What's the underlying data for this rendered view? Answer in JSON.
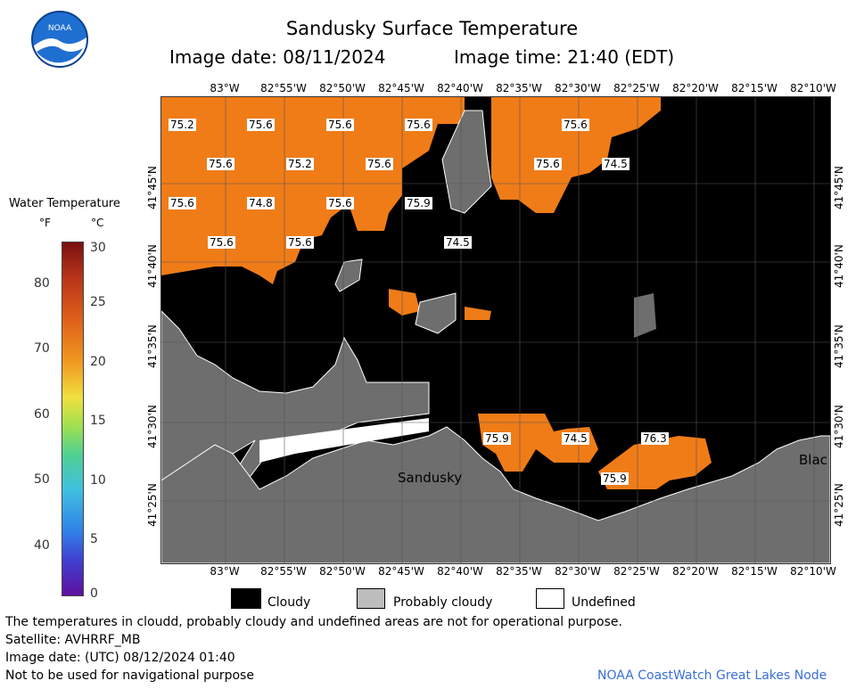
{
  "header": {
    "title": "Sandusky Surface Temperature",
    "image_date": "Image date: 08/11/2024",
    "image_time": "Image time: 21:40 (EDT)"
  },
  "colorbar": {
    "title": "Water Temperature",
    "unit_f": "°F",
    "unit_c": "°C",
    "f_ticks": [
      "80",
      "70",
      "60",
      "50",
      "40"
    ],
    "c_ticks": [
      "30",
      "25",
      "20",
      "15",
      "10",
      "5",
      "0"
    ]
  },
  "map": {
    "lon_labels": [
      "83°W",
      "82°55'W",
      "82°50'W",
      "82°45'W",
      "82°40'W",
      "82°35'W",
      "82°30'W",
      "82°25'W",
      "82°20'W",
      "82°15'W",
      "82°10'W"
    ],
    "lat_labels": [
      "41°45'N",
      "41°40'N",
      "41°35'N",
      "41°30'N",
      "41°25'N"
    ],
    "place_labels": {
      "sandusky": "Sandusky",
      "black": "Blac"
    },
    "temperature_labels": [
      "75.2",
      "75.6",
      "75.6",
      "75.6",
      "75.6",
      "75.2",
      "75.6",
      "75.6",
      "75.6",
      "74.5",
      "75.6",
      "74.8",
      "75.6",
      "75.9",
      "75.6",
      "75.6",
      "74.5",
      "75.9",
      "74.5",
      "76.3",
      "75.9"
    ],
    "colors": {
      "water_warm": "#f07c18",
      "cloudy": "#000000",
      "probably_cloudy": "#6e6e6e",
      "land": "#6e6e6e",
      "undefined": "#ffffff"
    }
  },
  "legend": {
    "cloudy": "Cloudy",
    "probably_cloudy": "Probably cloudy",
    "undefined": "Undefined"
  },
  "footer": {
    "disclaimer": "The temperatures in cloudd, probably cloudy and undefined areas are not for operational purpose.",
    "satellite": "Satellite: AVHRRF_MB",
    "utc_date": "Image date: (UTC) 08/12/2024  01:40",
    "nav_warning": "Not to be used for navigational purpose",
    "credit": "NOAA CoastWatch Great Lakes Node"
  }
}
